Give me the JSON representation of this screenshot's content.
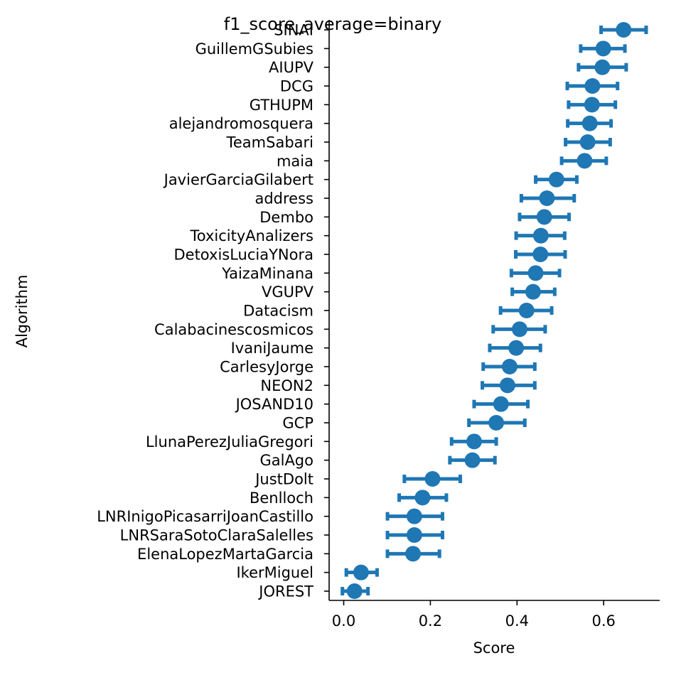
{
  "chart_data": {
    "type": "scatter",
    "subtype": "point-with-error-bars",
    "orientation": "horizontal",
    "title": "f1_score_average=binary",
    "xlabel": "Score",
    "ylabel": "Algorithm",
    "xlim": [
      -0.035,
      0.73
    ],
    "xticks": [
      0.0,
      0.2,
      0.4,
      0.6
    ],
    "xtick_labels": [
      "0.0",
      "0.2",
      "0.4",
      "0.6"
    ],
    "grid": false,
    "legend": "none",
    "color": "#1f77b4",
    "series": [
      {
        "points": [
          {
            "label": "SINAI",
            "value": 0.646,
            "low": 0.594,
            "high": 0.698
          },
          {
            "label": "GuillemGSubies",
            "value": 0.599,
            "low": 0.547,
            "high": 0.649
          },
          {
            "label": "AIUPV",
            "value": 0.597,
            "low": 0.542,
            "high": 0.652
          },
          {
            "label": "DCG",
            "value": 0.574,
            "low": 0.516,
            "high": 0.632
          },
          {
            "label": "GTHUPM",
            "value": 0.573,
            "low": 0.519,
            "high": 0.627
          },
          {
            "label": "alejandromosquera",
            "value": 0.568,
            "low": 0.517,
            "high": 0.617
          },
          {
            "label": "TeamSabari",
            "value": 0.563,
            "low": 0.512,
            "high": 0.615
          },
          {
            "label": "maia",
            "value": 0.556,
            "low": 0.503,
            "high": 0.606
          },
          {
            "label": "JavierGarciaGilabert",
            "value": 0.491,
            "low": 0.443,
            "high": 0.538
          },
          {
            "label": "address",
            "value": 0.469,
            "low": 0.41,
            "high": 0.532
          },
          {
            "label": "Dembo",
            "value": 0.463,
            "low": 0.406,
            "high": 0.52
          },
          {
            "label": "ToxicityAnalizers",
            "value": 0.455,
            "low": 0.398,
            "high": 0.51
          },
          {
            "label": "DetoxisLuciaYNora",
            "value": 0.454,
            "low": 0.397,
            "high": 0.511
          },
          {
            "label": "YaizaMinana",
            "value": 0.443,
            "low": 0.387,
            "high": 0.498
          },
          {
            "label": "VGUPV",
            "value": 0.437,
            "low": 0.389,
            "high": 0.487
          },
          {
            "label": "Datacism",
            "value": 0.422,
            "low": 0.362,
            "high": 0.48
          },
          {
            "label": "Calabacinescosmicos",
            "value": 0.406,
            "low": 0.345,
            "high": 0.465
          },
          {
            "label": "IvaniJaume",
            "value": 0.398,
            "low": 0.337,
            "high": 0.454
          },
          {
            "label": "CarlesyJorge",
            "value": 0.383,
            "low": 0.322,
            "high": 0.441
          },
          {
            "label": "NEON2",
            "value": 0.378,
            "low": 0.32,
            "high": 0.441
          },
          {
            "label": "JOSAND10",
            "value": 0.363,
            "low": 0.301,
            "high": 0.425
          },
          {
            "label": "GCP",
            "value": 0.352,
            "low": 0.289,
            "high": 0.418
          },
          {
            "label": "LlunaPerezJuliaGregori",
            "value": 0.301,
            "low": 0.249,
            "high": 0.352
          },
          {
            "label": "GalAgo",
            "value": 0.297,
            "low": 0.245,
            "high": 0.349
          },
          {
            "label": "JustDolt",
            "value": 0.205,
            "low": 0.14,
            "high": 0.269
          },
          {
            "label": "Benlloch",
            "value": 0.182,
            "low": 0.128,
            "high": 0.237
          },
          {
            "label": "LNRInigoPicasarriJoanCastillo",
            "value": 0.163,
            "low": 0.101,
            "high": 0.228
          },
          {
            "label": "LNRSaraSotoClaraSalelles",
            "value": 0.163,
            "low": 0.101,
            "high": 0.228
          },
          {
            "label": "ElenaLopezMartaGarcia",
            "value": 0.16,
            "low": 0.101,
            "high": 0.221
          },
          {
            "label": "IkerMiguel",
            "value": 0.04,
            "low": 0.006,
            "high": 0.077
          },
          {
            "label": "JOREST",
            "value": 0.025,
            "low": -0.003,
            "high": 0.056
          }
        ]
      }
    ]
  }
}
